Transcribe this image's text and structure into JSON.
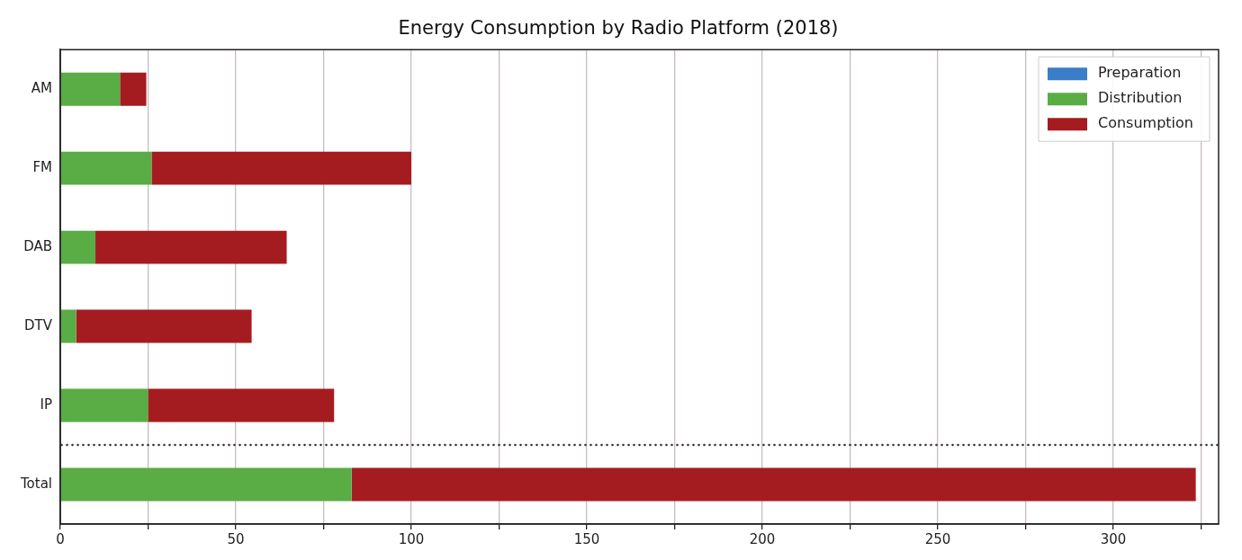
{
  "chart_data": {
    "type": "bar",
    "title": "Energy Consumption by Radio Platform (2018)",
    "orientation": "horizontal",
    "stacked": true,
    "categories": [
      "AM",
      "FM",
      "DAB",
      "DTV",
      "IP",
      "Total"
    ],
    "series": [
      {
        "name": "Preparation",
        "color": "#3a7dc9",
        "values": [
          0,
          0,
          0,
          0,
          0,
          0
        ]
      },
      {
        "name": "Distribution",
        "color": "#5aac44",
        "values": [
          17,
          26,
          10,
          4.5,
          25,
          83
        ]
      },
      {
        "name": "Consumption",
        "color": "#a51c20",
        "values": [
          7.5,
          74,
          54.5,
          50,
          53,
          240.5
        ]
      }
    ],
    "xlim": [
      0,
      330
    ],
    "xticks": [
      0,
      {
        "value": 25,
        "label": null
      },
      50,
      {
        "value": 75,
        "label": null
      },
      100,
      {
        "value": 125,
        "label": null
      },
      150,
      {
        "value": 175,
        "label": null
      },
      200,
      {
        "value": 225,
        "label": null
      },
      250,
      {
        "value": 275,
        "label": null
      },
      300,
      {
        "value": 325,
        "label": null
      }
    ],
    "grid": "x",
    "legend": "top right"
  }
}
